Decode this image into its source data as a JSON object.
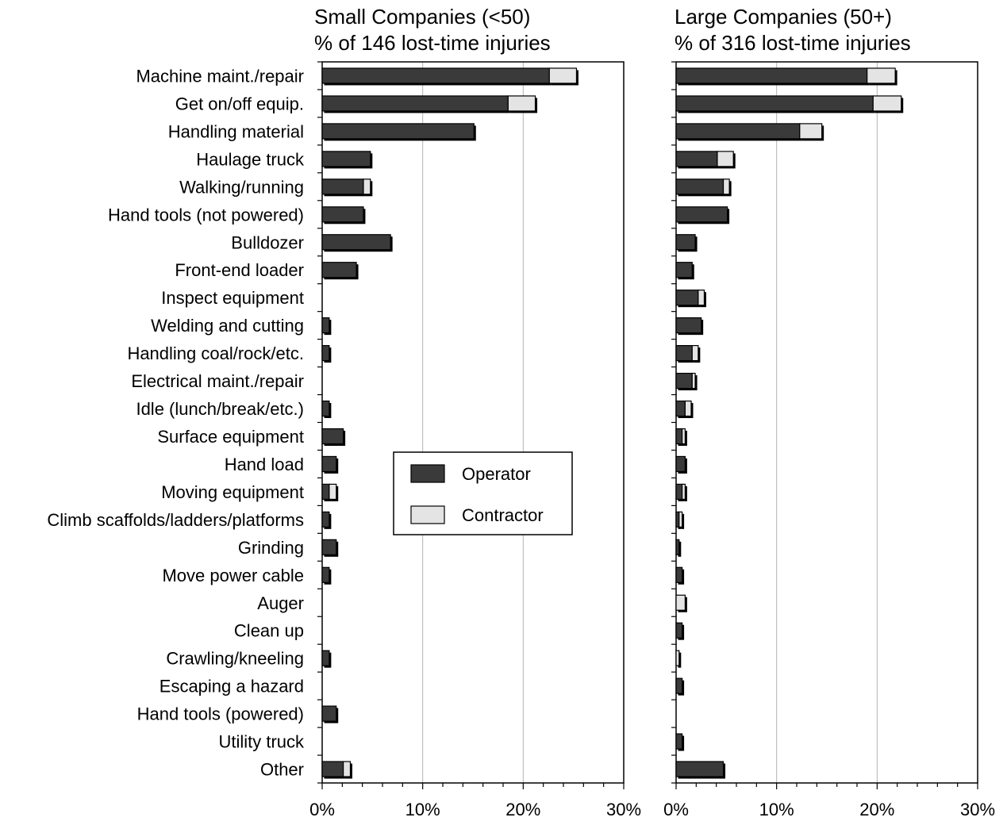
{
  "chart_data": [
    {
      "type": "bar",
      "orientation": "horizontal",
      "stacked": true,
      "title": "Small Companies (<50)",
      "subtitle": "% of 146 lost-time injuries",
      "xlim": [
        0,
        30
      ],
      "xticks": [
        "0%",
        "10%",
        "20%",
        "30%"
      ],
      "grid": "vertical",
      "categories": [
        "Machine maint./repair",
        "Get on/off equip.",
        "Handling material",
        "Haulage truck",
        "Walking/running",
        "Hand tools (not powered)",
        "Bulldozer",
        "Front-end loader",
        "Inspect equipment",
        "Welding and cutting",
        "Handling coal/rock/etc.",
        "Electrical maint./repair",
        "Idle (lunch/break/etc.)",
        "Surface equipment",
        "Hand load",
        "Moving equipment",
        "Climb scaffolds/ladders/platforms",
        "Grinding",
        "Move power cable",
        "Auger",
        "Clean up",
        "Crawling/kneeling",
        "Escaping a hazard",
        "Hand tools (powered)",
        "Utility truck",
        "Other"
      ],
      "series": [
        {
          "name": "Operator",
          "color": "#3a3a3a",
          "values": [
            22.6,
            18.5,
            15.1,
            4.8,
            4.1,
            4.1,
            6.8,
            3.4,
            0,
            0.7,
            0.7,
            0,
            0.7,
            2.1,
            1.4,
            0.7,
            0.7,
            1.4,
            0.7,
            0,
            0,
            0.7,
            0,
            1.4,
            0,
            2.1
          ]
        },
        {
          "name": "Contractor",
          "color": "#e4e4e4",
          "values": [
            2.7,
            2.7,
            0,
            0,
            0.7,
            0,
            0,
            0,
            0,
            0,
            0,
            0,
            0,
            0,
            0,
            0.7,
            0,
            0,
            0,
            0,
            0,
            0,
            0,
            0,
            0,
            0.7
          ]
        }
      ]
    },
    {
      "type": "bar",
      "orientation": "horizontal",
      "stacked": true,
      "title": "Large Companies (50+)",
      "subtitle": "% of 316 lost-time injuries",
      "xlim": [
        0,
        30
      ],
      "xticks": [
        "0%",
        "10%",
        "20%",
        "30%"
      ],
      "grid": "vertical",
      "categories": [
        "Machine maint./repair",
        "Get on/off equip.",
        "Handling material",
        "Haulage truck",
        "Walking/running",
        "Hand tools (not powered)",
        "Bulldozer",
        "Front-end loader",
        "Inspect equipment",
        "Welding and cutting",
        "Handling coal/rock/etc.",
        "Electrical maint./repair",
        "Idle (lunch/break/etc.)",
        "Surface equipment",
        "Hand load",
        "Moving equipment",
        "Climb scaffolds/ladders/platforms",
        "Grinding",
        "Move power cable",
        "Auger",
        "Clean up",
        "Crawling/kneeling",
        "Escaping a hazard",
        "Hand tools (powered)",
        "Utility truck",
        "Other"
      ],
      "series": [
        {
          "name": "Operator",
          "color": "#3a3a3a",
          "values": [
            19.0,
            19.6,
            12.3,
            4.1,
            4.7,
            5.1,
            1.9,
            1.6,
            2.2,
            2.5,
            1.6,
            1.6,
            0.9,
            0.6,
            0.9,
            0.6,
            0.3,
            0.3,
            0.6,
            0,
            0.6,
            0,
            0.6,
            0,
            0.6,
            4.7
          ]
        },
        {
          "name": "Contractor",
          "color": "#e4e4e4",
          "values": [
            2.8,
            2.8,
            2.2,
            1.6,
            0.6,
            0,
            0,
            0,
            0.6,
            0,
            0.6,
            0.3,
            0.6,
            0.3,
            0,
            0.3,
            0.3,
            0,
            0,
            0.9,
            0,
            0.3,
            0,
            0,
            0,
            0
          ]
        }
      ]
    }
  ],
  "legend": {
    "placement": "center",
    "items": [
      {
        "label": "Operator",
        "color": "#3a3a3a"
      },
      {
        "label": "Contractor",
        "color": "#e4e4e4"
      }
    ]
  }
}
